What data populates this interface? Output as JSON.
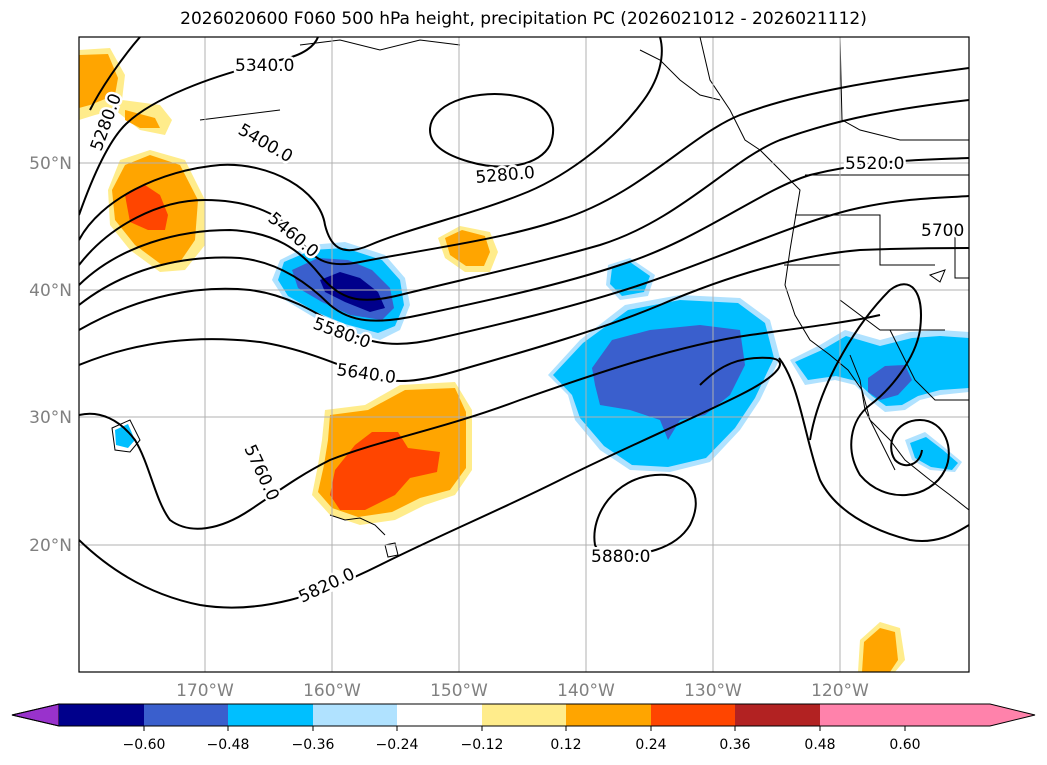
{
  "title": "2026020600 F060 500 hPa height, precipitation PC (2026021012 - 2026021112)",
  "map": {
    "lat_labels": [
      "50°N",
      "40°N",
      "30°N",
      "20°N"
    ],
    "lon_labels": [
      "170°W",
      "160°W",
      "150°W",
      "140°W",
      "130°W",
      "120°W"
    ],
    "contour_labels": [
      "5340.0",
      "5280.0",
      "5400.0",
      "5460.0",
      "5520.0",
      "5580.0",
      "5640.0",
      "5700",
      "5760.0",
      "5820.0",
      "5880.0",
      "5280.0"
    ]
  },
  "colorbar": {
    "ticks": [
      "−0.60",
      "−0.48",
      "−0.36",
      "−0.24",
      "−0.12",
      "0.12",
      "0.24",
      "0.36",
      "0.48",
      "0.60"
    ],
    "colors": [
      "#9932cc",
      "#00008b",
      "#3a5fcd",
      "#00bfff",
      "#b0e2ff",
      "#ffffff",
      "#ffec8b",
      "#ffa500",
      "#ff4500",
      "#b22222",
      "#ff82ab"
    ]
  }
}
